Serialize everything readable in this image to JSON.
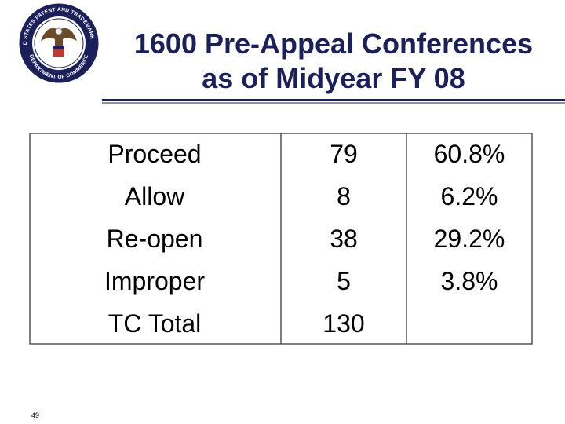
{
  "header": {
    "title": [
      "1600 Pre-Appeal Conferences",
      "as of Midyear FY 08"
    ]
  },
  "seal": {
    "top_text": "UNITED STATES PATENT AND TRADEMARK OFFICE",
    "bottom_text": "DEPARTMENT OF COMMERCE"
  },
  "table": {
    "rows": [
      [
        "Proceed",
        79,
        "60.8%"
      ],
      [
        "Allow",
        8,
        "6.2%"
      ],
      [
        "Re-open",
        38,
        "29.2%"
      ],
      [
        "Improper",
        5,
        "3.8%"
      ],
      [
        "TC Total",
        130
      ]
    ]
  },
  "footer": {
    "page_number": 49
  }
}
